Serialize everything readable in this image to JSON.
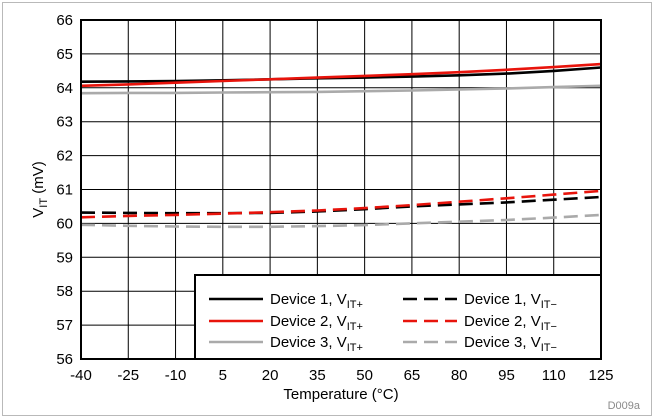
{
  "chart_data": {
    "type": "line",
    "xlabel": "Temperature (°C)",
    "ylabel": {
      "base": "V",
      "sub": "IT",
      "rest": " (mV)"
    },
    "xlim": [
      -40,
      125
    ],
    "ylim": [
      56,
      66
    ],
    "xticks": [
      -40,
      -25,
      -10,
      5,
      20,
      35,
      50,
      65,
      80,
      95,
      110,
      125
    ],
    "yticks": [
      56,
      57,
      58,
      59,
      60,
      61,
      62,
      63,
      64,
      65,
      66
    ],
    "grid": true,
    "legend_position": "bottom-right",
    "x": [
      -40,
      -25,
      -10,
      5,
      20,
      35,
      50,
      65,
      80,
      95,
      110,
      125
    ],
    "series": [
      {
        "name": "Device 1, V",
        "sub": "IT+",
        "color": "#000000",
        "dash": "solid",
        "values": [
          64.18,
          64.19,
          64.2,
          64.22,
          64.25,
          64.28,
          64.3,
          64.33,
          64.37,
          64.42,
          64.5,
          64.6
        ]
      },
      {
        "name": "Device 1, V",
        "sub": "IT−",
        "color": "#000000",
        "dash": "dashed",
        "values": [
          60.32,
          60.31,
          60.3,
          60.3,
          60.31,
          60.35,
          60.42,
          60.5,
          60.56,
          60.62,
          60.7,
          60.78
        ]
      },
      {
        "name": "Device 2, V",
        "sub": "IT+",
        "color": "#e8140c",
        "dash": "solid",
        "values": [
          64.06,
          64.1,
          64.15,
          64.2,
          64.25,
          64.3,
          64.35,
          64.4,
          64.46,
          64.53,
          64.61,
          64.7
        ]
      },
      {
        "name": "Device 2, V",
        "sub": "IT−",
        "color": "#e8140c",
        "dash": "dashed",
        "values": [
          60.18,
          60.22,
          60.25,
          60.29,
          60.33,
          60.38,
          60.45,
          60.54,
          60.64,
          60.74,
          60.85,
          60.96
        ]
      },
      {
        "name": "Device 3, V",
        "sub": "IT+",
        "color": "#aaaaaa",
        "dash": "solid",
        "values": [
          63.84,
          63.85,
          63.85,
          63.86,
          63.87,
          63.88,
          63.9,
          63.92,
          63.95,
          63.98,
          64.02,
          64.06
        ]
      },
      {
        "name": "Device 3, V",
        "sub": "IT−",
        "color": "#aaaaaa",
        "dash": "dashed",
        "values": [
          59.96,
          59.93,
          59.91,
          59.9,
          59.9,
          59.92,
          59.95,
          60.0,
          60.05,
          60.1,
          60.17,
          60.25
        ]
      }
    ]
  },
  "watermark": "D009a"
}
